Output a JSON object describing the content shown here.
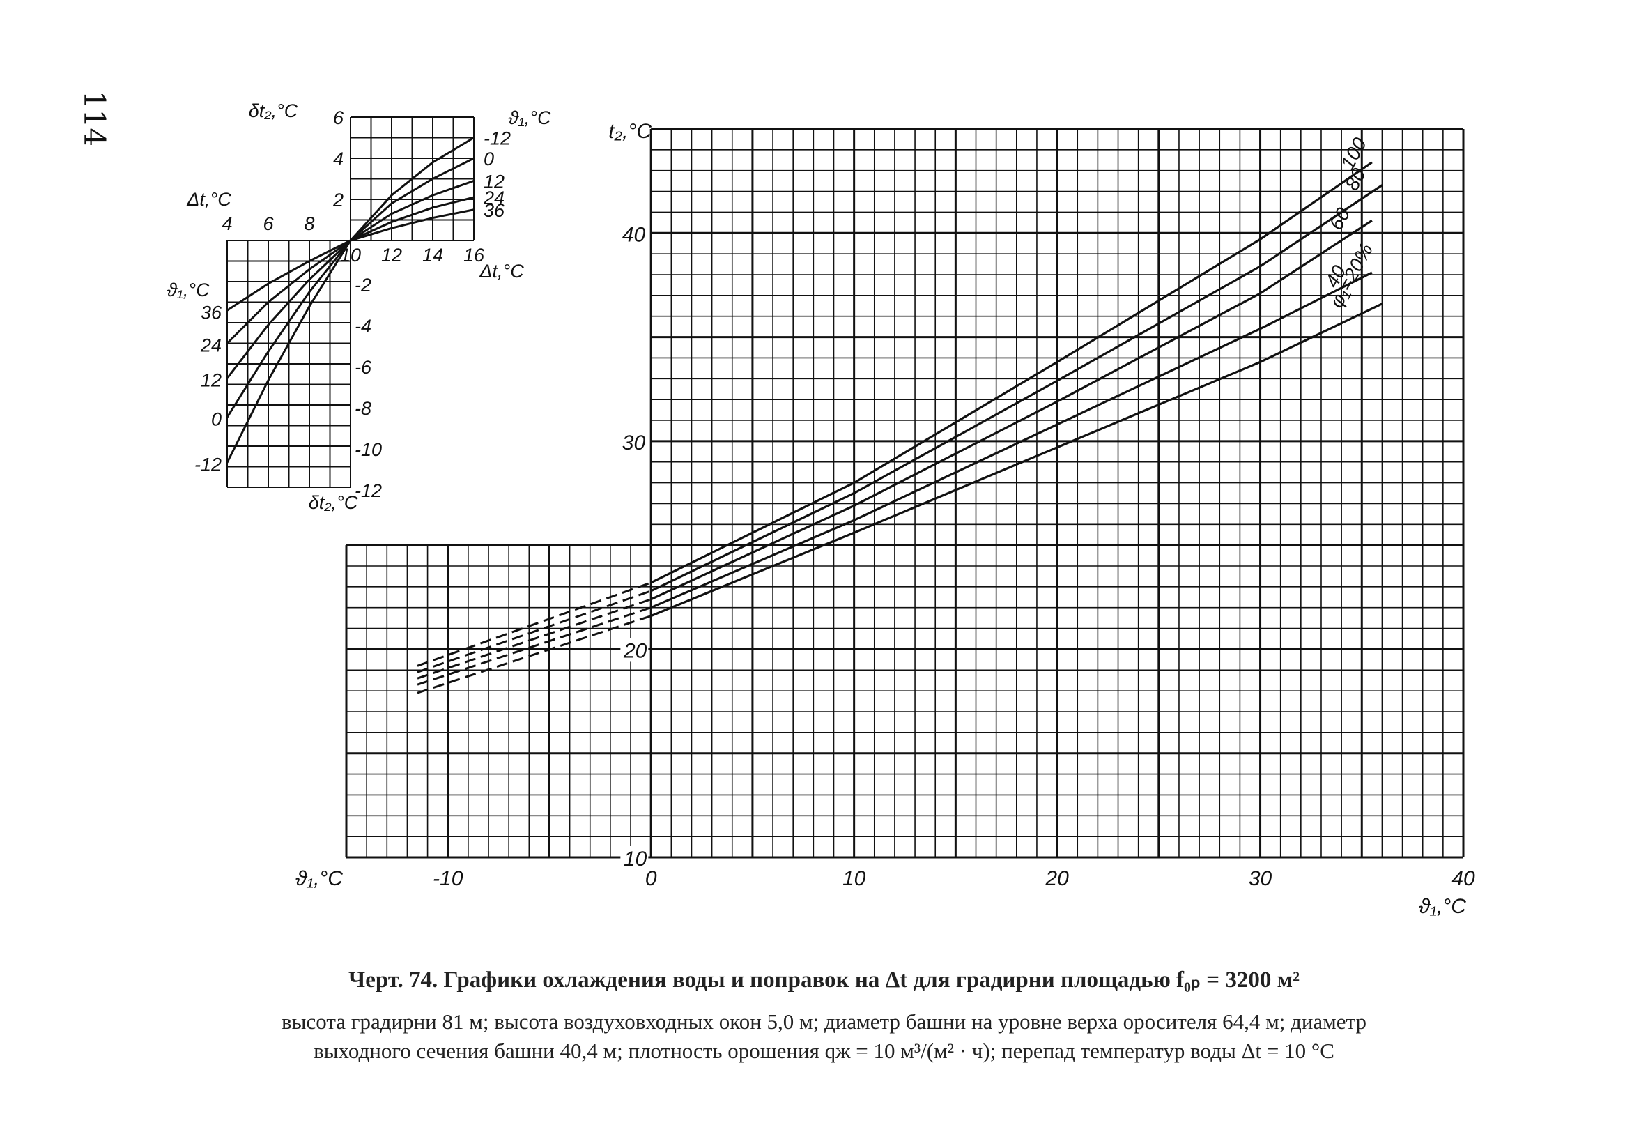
{
  "page_number": "114",
  "caption": {
    "title": "Черт. 74. Графики охлаждения воды и поправок на Δt для градирни площадью f₀ₚ = 3200 м²",
    "line1": "высота градирни 81 м; высота воздуховходных окон 5,0 м; диаметр башни на уровне верха оросителя 64,4 м; диаметр",
    "line2": "выходного сечения башни 40,4 м; плотность орошения qж = 10 м³/(м² · ч); перепад температур воды Δt = 10 °С"
  },
  "chart_data": [
    {
      "type": "line",
      "xlabel": "ϑ₁,°C",
      "ylabel": "t₂,°C",
      "xlim": [
        -15,
        40
      ],
      "ylim": [
        10,
        45
      ],
      "x_ticks": [
        "-10",
        "0",
        "10",
        "20",
        "30",
        "40"
      ],
      "y_ticks": [
        "10",
        "20",
        "30",
        "40"
      ],
      "grid": true,
      "x_axis_label_left": "ϑ₁,°C",
      "curve_label_prefix": "φ₁=20%",
      "series": [
        {
          "name": "100",
          "dashed_x": [
            -11.5,
            0
          ],
          "x": [
            0,
            10,
            20,
            30,
            35.5
          ],
          "y": [
            23.2,
            28.0,
            33.8,
            39.7,
            43.4
          ],
          "dashed_y": [
            19.2,
            23.2
          ]
        },
        {
          "name": "80",
          "dashed_x": [
            -11.5,
            0
          ],
          "x": [
            0,
            10,
            20,
            30,
            36
          ],
          "y": [
            22.8,
            27.5,
            32.9,
            38.4,
            42.3
          ],
          "dashed_y": [
            18.9,
            22.8
          ]
        },
        {
          "name": "60",
          "dashed_x": [
            -11.5,
            0
          ],
          "x": [
            0,
            10,
            20,
            30,
            35.5
          ],
          "y": [
            22.4,
            26.9,
            31.9,
            37.1,
            40.6
          ],
          "dashed_y": [
            18.6,
            22.4
          ]
        },
        {
          "name": "40",
          "dashed_x": [
            -11.5,
            0
          ],
          "x": [
            0,
            10,
            20,
            30,
            35.5
          ],
          "y": [
            22.0,
            26.2,
            30.8,
            35.4,
            38.1
          ],
          "dashed_y": [
            18.3,
            22.0
          ]
        },
        {
          "name": "20",
          "dashed_x": [
            -11.5,
            0
          ],
          "x": [
            0,
            10,
            20,
            30,
            36
          ],
          "y": [
            21.6,
            25.6,
            29.7,
            33.8,
            36.6
          ],
          "dashed_y": [
            17.9,
            21.6
          ]
        }
      ]
    },
    {
      "type": "line",
      "title": "",
      "xlabel": "Δt,°C",
      "ylabel": "δt₂,°C",
      "left_x_ticks": [
        "4",
        "6",
        "8"
      ],
      "right_x_ticks": [
        "10",
        "12",
        "14",
        "16"
      ],
      "top_y_ticks": [
        "6",
        "4",
        "2"
      ],
      "bottom_y_ticks": [
        "-2",
        "-4",
        "-6",
        "-8",
        "-10",
        "-12"
      ],
      "left_xlim": [
        4,
        10
      ],
      "right_xlim": [
        10,
        16
      ],
      "top_ylim": [
        0,
        6
      ],
      "bottom_ylim": [
        -12,
        0
      ],
      "right_series_label": "ϑ₁,°C",
      "left_series_label": "ϑ₁,°C",
      "right_series": [
        {
          "name": "-12",
          "x": [
            10,
            12,
            14,
            16
          ],
          "y": [
            0,
            2.2,
            3.8,
            5.0
          ]
        },
        {
          "name": "0",
          "x": [
            10,
            12,
            14,
            16
          ],
          "y": [
            0,
            1.8,
            3.0,
            4.0
          ]
        },
        {
          "name": "12",
          "x": [
            10,
            12,
            14,
            16
          ],
          "y": [
            0,
            1.3,
            2.2,
            2.9
          ]
        },
        {
          "name": "24",
          "x": [
            10,
            12,
            14,
            16
          ],
          "y": [
            0,
            0.9,
            1.6,
            2.1
          ]
        },
        {
          "name": "36",
          "x": [
            10,
            12,
            14,
            16
          ],
          "y": [
            0,
            0.6,
            1.1,
            1.5
          ]
        }
      ],
      "left_series": [
        {
          "name": "36",
          "x": [
            4,
            6,
            8,
            10
          ],
          "y": [
            -3.4,
            -2.1,
            -1.0,
            0
          ]
        },
        {
          "name": "24",
          "x": [
            4,
            6,
            8,
            10
          ],
          "y": [
            -5.0,
            -3.0,
            -1.4,
            0
          ]
        },
        {
          "name": "12",
          "x": [
            4,
            6,
            8,
            10
          ],
          "y": [
            -6.7,
            -4.1,
            -1.9,
            0
          ]
        },
        {
          "name": "0",
          "x": [
            4,
            6,
            8,
            10
          ],
          "y": [
            -8.6,
            -5.4,
            -2.5,
            0
          ]
        },
        {
          "name": "-12",
          "x": [
            4,
            6,
            8,
            10
          ],
          "y": [
            -10.8,
            -6.8,
            -3.2,
            0
          ]
        }
      ]
    }
  ]
}
